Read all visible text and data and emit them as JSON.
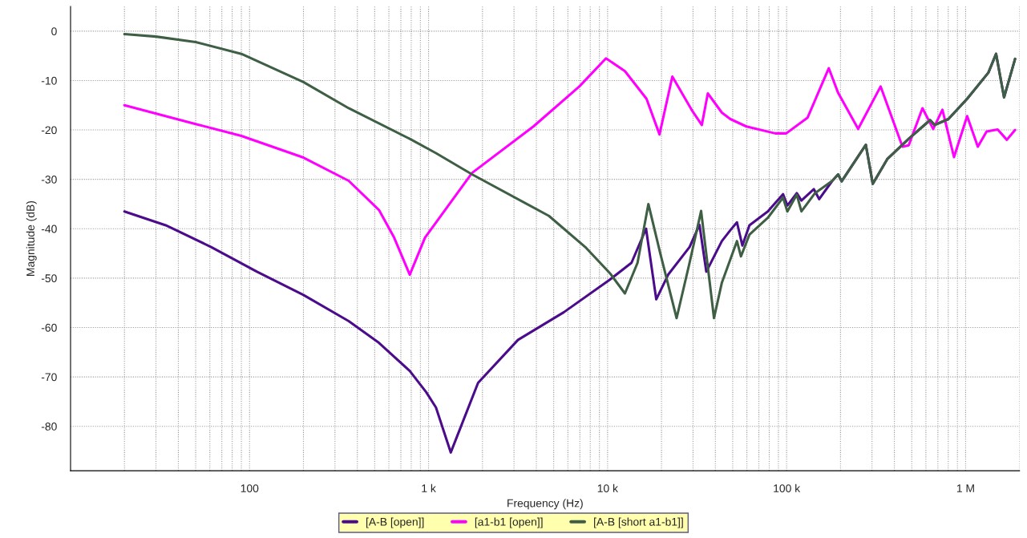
{
  "chart_data": {
    "type": "line",
    "xlabel": "Frequency (Hz)",
    "ylabel": "Magnitude (dB)",
    "log": "x",
    "xlim": [
      10,
      2000000
    ],
    "xticks": [
      100,
      {
        "value": 1000,
        "label": "1 k"
      },
      {
        "value": 10000,
        "label": "10 k"
      },
      {
        "value": 100000,
        "label": "100 k"
      },
      {
        "value": 1000000,
        "label": "1 M"
      }
    ],
    "ylim": [
      -89,
      5
    ],
    "yticks": [
      0,
      -10,
      -20,
      -30,
      -40,
      -50,
      -60,
      -70,
      -80
    ],
    "grid": true,
    "legend": "bottom",
    "line_style": "solid",
    "marker": "none",
    "series": [
      {
        "name": "[A-B [open]]",
        "color": "#4b0c8c",
        "x": [
          20,
          34,
          61,
          110,
          200,
          358,
          528,
          785,
          970,
          1100,
          1330,
          1890,
          3160,
          5700,
          10300,
          13600,
          16400,
          18700,
          21800,
          28700,
          32600,
          35600,
          43500,
          48500,
          52800,
          56600,
          62000,
          78500,
          95500,
          101000,
          114000,
          121000,
          142000,
          152000,
          180000,
          194000,
          203000,
          277000,
          303000,
          365000,
          481000,
          633000,
          671000,
          801000,
          1020000,
          1340000,
          1480000,
          1640000,
          1890000
        ],
        "values": [
          -36.5,
          -39.3,
          -43.7,
          -48.7,
          -53.4,
          -58.7,
          -63.1,
          -68.8,
          -73.1,
          -76.2,
          -85.3,
          -71.2,
          -62.5,
          -56.9,
          -50.3,
          -46.9,
          -40,
          -54.3,
          -49.3,
          -43.7,
          -39.2,
          -48.7,
          -42.5,
          -40.3,
          -38.7,
          -43.4,
          -39.3,
          -36.5,
          -33,
          -35.3,
          -32.8,
          -34.3,
          -32,
          -34,
          -30.3,
          -29,
          -30.4,
          -23,
          -30.9,
          -25.9,
          -21.8,
          -18,
          -19,
          -17.8,
          -13.7,
          -8.4,
          -4.6,
          -13.4,
          -5.6
        ]
      },
      {
        "name": "[a1-b1 [open]]",
        "color": "#ff00ff",
        "x": [
          20,
          50,
          90,
          200,
          358,
          528,
          642,
          785,
          955,
          1750,
          3850,
          6950,
          9800,
          12500,
          16500,
          19500,
          23000,
          29800,
          33600,
          36300,
          43500,
          48500,
          59600,
          86500,
          99500,
          131000,
          172000,
          194000,
          251000,
          335000,
          444000,
          481000,
          574000,
          659000,
          742000,
          861000,
          1020000,
          1170000,
          1310000,
          1510000,
          1700000,
          1890000
        ],
        "values": [
          -15,
          -18.8,
          -21.2,
          -25.6,
          -30.3,
          -36.2,
          -41.8,
          -49.3,
          -41.8,
          -28.7,
          -19.3,
          -11.2,
          -5.5,
          -8.1,
          -13.7,
          -20.9,
          -9.2,
          -16.2,
          -19,
          -12.6,
          -16.5,
          -17.8,
          -19.3,
          -20.7,
          -20.7,
          -17.5,
          -7.5,
          -12.5,
          -19.8,
          -11.2,
          -23.4,
          -23.1,
          -15.6,
          -19.8,
          -15.9,
          -25.5,
          -17.2,
          -23.4,
          -20.3,
          -19.9,
          -22,
          -20
        ]
      },
      {
        "name": "[A-B [short a1-b1]]",
        "color": "#3f5f45",
        "x": [
          20,
          30,
          50,
          90,
          200,
          358,
          785,
          1100,
          1750,
          4700,
          7500,
          10300,
          12500,
          14700,
          16900,
          19700,
          24300,
          28700,
          33300,
          39300,
          43500,
          48500,
          52800,
          55600,
          62000,
          78500,
          95500,
          101000,
          114000,
          121000,
          144000,
          180000,
          194000,
          203000,
          277000,
          303000,
          365000,
          481000,
          633000,
          671000,
          801000,
          1020000,
          1340000,
          1480000,
          1640000,
          1890000
        ],
        "values": [
          -0.6,
          -1.1,
          -2.2,
          -4.6,
          -10.3,
          -15.6,
          -21.8,
          -24.7,
          -29,
          -37.4,
          -43.7,
          -49,
          -53.1,
          -46.9,
          -35,
          -45,
          -58.1,
          -46.9,
          -36.4,
          -58.1,
          -50.9,
          -46.2,
          -42.5,
          -45.6,
          -41.2,
          -37.8,
          -33.7,
          -36.5,
          -33.1,
          -36.5,
          -32.8,
          -30.3,
          -29,
          -30.4,
          -23,
          -30.9,
          -25.9,
          -21.8,
          -18,
          -19,
          -17.8,
          -13.7,
          -8.4,
          -4.6,
          -13.4,
          -5.6
        ]
      }
    ]
  }
}
